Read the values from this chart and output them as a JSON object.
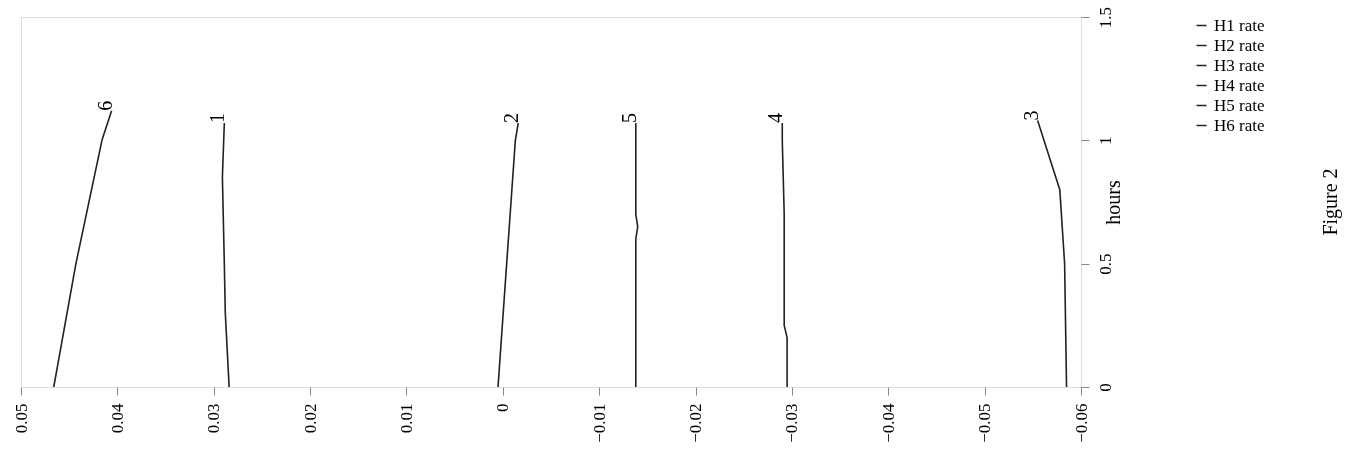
{
  "chart_data": {
    "type": "line",
    "ylabel": "hours",
    "ylim": [
      0,
      1.5
    ],
    "yticks": [
      0,
      0.5,
      1,
      1.5
    ],
    "xlim": [
      0.05,
      -0.06
    ],
    "xticks": [
      0.05,
      0.04,
      0.03,
      0.02,
      0.01,
      0,
      -0.01,
      -0.02,
      -0.03,
      -0.04,
      -0.05,
      -0.06
    ],
    "series": [
      {
        "name": "H1 rate",
        "color": "#222222",
        "x": [
          0.0284,
          0.0288,
          0.0289,
          0.0291,
          0.0289
        ],
        "values": [
          0,
          0.3,
          0.5,
          0.85,
          1.07
        ]
      },
      {
        "name": "H2 rate",
        "color": "#222222",
        "x": [
          0.0005,
          -0.0004,
          -0.0013,
          -0.0016
        ],
        "values": [
          0,
          0.5,
          1,
          1.07
        ]
      },
      {
        "name": "H3 rate",
        "color": "#222222",
        "x": [
          -0.0585,
          -0.0583,
          -0.0578,
          -0.0555
        ],
        "values": [
          0,
          0.5,
          0.8,
          1.08
        ]
      },
      {
        "name": "H4 rate",
        "color": "#222222",
        "x": [
          -0.0295,
          -0.0295,
          -0.0292,
          -0.0292,
          -0.029,
          -0.029
        ],
        "values": [
          0,
          0.2,
          0.25,
          0.7,
          1,
          1.07
        ]
      },
      {
        "name": "H5 rate",
        "color": "#222222",
        "x": [
          -0.0138,
          -0.0138,
          -0.014,
          -0.0138,
          -0.0138
        ],
        "values": [
          0,
          0.6,
          0.65,
          0.7,
          1.07
        ]
      },
      {
        "name": "H6 rate",
        "color": "#222222",
        "x": [
          0.0466,
          0.0443,
          0.0416,
          0.0406
        ],
        "values": [
          0,
          0.5,
          1,
          1.12
        ]
      }
    ],
    "annotations": [
      "1",
      "2",
      "3",
      "4",
      "5",
      "6",
      "Figure 2"
    ],
    "legend": "right",
    "grid": false,
    "marker": "none",
    "line_style": "solid"
  }
}
